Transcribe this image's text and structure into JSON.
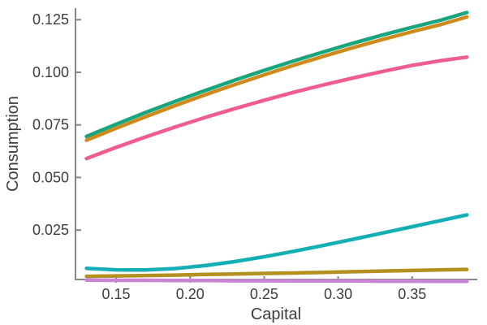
{
  "figure": {
    "background": "#ffffff"
  },
  "chart_data": {
    "type": "line",
    "title": "",
    "xlabel": "Capital",
    "ylabel": "Consumption",
    "xlim": [
      0.122,
      0.394
    ],
    "ylim": [
      0.0015,
      0.1305
    ],
    "grid": false,
    "legend_position": "none",
    "axis_color": "#878787",
    "text_color": "#3d3d3d",
    "line_width": 4.5,
    "x_ticks": [
      0.15,
      0.2,
      0.25,
      0.3,
      0.35
    ],
    "x_tick_labels": [
      "0.15",
      "0.20",
      "0.25",
      "0.30",
      "0.35"
    ],
    "y_ticks": [
      0.025,
      0.05,
      0.075,
      0.1,
      0.125
    ],
    "y_tick_labels": [
      "0.025",
      "0.050",
      "0.075",
      "0.100",
      "0.125"
    ],
    "x": [
      0.13,
      0.15,
      0.17,
      0.19,
      0.21,
      0.23,
      0.25,
      0.27,
      0.29,
      0.31,
      0.33,
      0.35,
      0.37,
      0.387
    ],
    "series": [
      {
        "name": "teal-green-line",
        "color": "#16a57d",
        "values": [
          0.0695,
          0.0753,
          0.0809,
          0.0862,
          0.0913,
          0.0962,
          0.1009,
          0.1054,
          0.1097,
          0.1138,
          0.1177,
          0.1214,
          0.1249,
          0.1284
        ]
      },
      {
        "name": "orange-line",
        "color": "#cf8a1e",
        "values": [
          0.0677,
          0.0734,
          0.0789,
          0.0842,
          0.0893,
          0.0941,
          0.0988,
          0.1033,
          0.1076,
          0.1117,
          0.1156,
          0.1193,
          0.1228,
          0.1263
        ]
      },
      {
        "name": "pink-line",
        "color": "#ee5c90",
        "values": [
          0.059,
          0.0643,
          0.0693,
          0.074,
          0.0785,
          0.0827,
          0.0867,
          0.0905,
          0.094,
          0.0973,
          0.1004,
          0.1033,
          0.1056,
          0.1072
        ]
      },
      {
        "name": "cyan-line",
        "color": "#14aeb5",
        "values": [
          0.0068,
          0.0061,
          0.006,
          0.0067,
          0.0081,
          0.01,
          0.0123,
          0.0149,
          0.0177,
          0.0206,
          0.0236,
          0.0266,
          0.0296,
          0.0322
        ]
      },
      {
        "name": "olive-line",
        "color": "#b3901f",
        "values": [
          0.003,
          0.0032,
          0.0034,
          0.0036,
          0.0039,
          0.0041,
          0.0044,
          0.0046,
          0.0049,
          0.0052,
          0.0055,
          0.0058,
          0.0061,
          0.0063
        ]
      },
      {
        "name": "purple-line",
        "color": "#c885d6",
        "values": [
          0.0012,
          0.0011,
          0.0011,
          0.001,
          0.001,
          0.0009,
          0.0009,
          0.0008,
          0.0008,
          0.0008,
          0.0007,
          0.0007,
          0.0006,
          0.0006
        ]
      }
    ]
  }
}
